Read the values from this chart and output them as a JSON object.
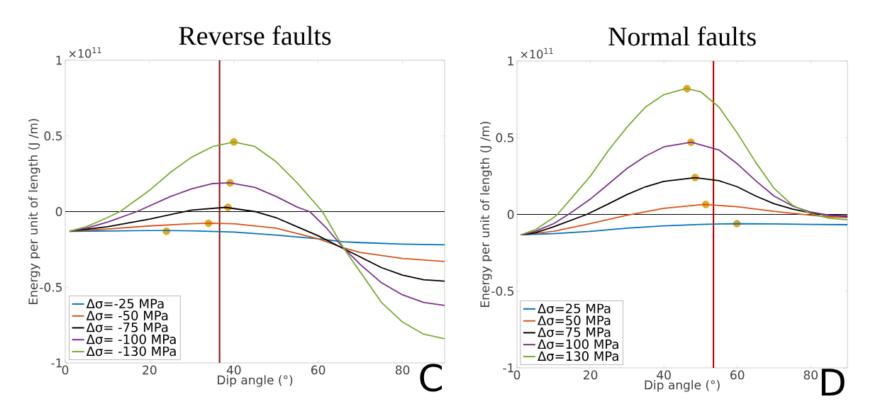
{
  "chart_data": [
    {
      "type": "line",
      "title": "Reverse faults",
      "xlabel": "Dip angle (°)",
      "ylabel": "Energy per unit of length (J /m)",
      "xlim": [
        0,
        90
      ],
      "ylim": [
        -1,
        1
      ],
      "xticks": [
        0,
        20,
        40,
        60,
        80
      ],
      "yticks": [
        -1,
        -0.5,
        0,
        0.5,
        1
      ],
      "legend": "bottom left",
      "annotations": [
        "×10$^{11}$",
        "C"
      ],
      "ref_lines": [
        {
          "axis": "y",
          "value": 0,
          "color": "#000000"
        },
        {
          "axis": "x",
          "value": 36.6,
          "color": "#8b1414"
        }
      ],
      "series": [
        {
          "name": "Δσ=-25 MPa",
          "color": "#0072bd",
          "x": [
            1,
            10,
            20,
            24,
            30,
            40,
            50,
            60,
            66,
            70,
            80,
            90
          ],
          "values": [
            -0.13,
            -0.128,
            -0.125,
            -0.125,
            -0.127,
            -0.135,
            -0.155,
            -0.18,
            -0.2,
            -0.205,
            -0.215,
            -0.22
          ]
        },
        {
          "name": "Δσ= -50 MPa",
          "color": "#d95319",
          "x": [
            1,
            10,
            20,
            30,
            34,
            40,
            50,
            60,
            66,
            70,
            80,
            90
          ],
          "values": [
            -0.13,
            -0.115,
            -0.095,
            -0.08,
            -0.077,
            -0.08,
            -0.11,
            -0.18,
            -0.24,
            -0.27,
            -0.31,
            -0.33
          ]
        },
        {
          "name": "Δσ= -75 MPa",
          "color": "#000000",
          "x": [
            1,
            10,
            20,
            30,
            38,
            45,
            50,
            55,
            60,
            66,
            70,
            75,
            80,
            85,
            90
          ],
          "values": [
            -0.13,
            -0.1,
            -0.05,
            0.01,
            0.028,
            0.0,
            -0.04,
            -0.1,
            -0.16,
            -0.245,
            -0.3,
            -0.37,
            -0.42,
            -0.45,
            -0.46
          ]
        },
        {
          "name": "Δσ= -100 MPa",
          "color": "#7e2f8e",
          "x": [
            1,
            5,
            10,
            17,
            25,
            30,
            35,
            39,
            45,
            50,
            55,
            58,
            62,
            66,
            70,
            75,
            80,
            85,
            90
          ],
          "values": [
            -0.13,
            -0.11,
            -0.07,
            0.0,
            0.1,
            0.15,
            0.185,
            0.19,
            0.16,
            0.1,
            0.03,
            0.0,
            -0.11,
            -0.24,
            -0.35,
            -0.47,
            -0.55,
            -0.6,
            -0.62
          ]
        },
        {
          "name": "Δσ= -130 MPa",
          "color": "#77ac30",
          "x": [
            1,
            5,
            10,
            13,
            20,
            25,
            30,
            35,
            40,
            45,
            50,
            55,
            61,
            66,
            70,
            75,
            80,
            85,
            90
          ],
          "values": [
            -0.13,
            -0.1,
            -0.04,
            0.0,
            0.14,
            0.26,
            0.36,
            0.43,
            0.46,
            0.43,
            0.33,
            0.19,
            0.0,
            -0.24,
            -0.4,
            -0.6,
            -0.73,
            -0.81,
            -0.84
          ]
        },
        {
          "type": "scatter",
          "color": "#e6a817",
          "x": [
            24,
            34,
            38.6,
            39.1,
            40
          ],
          "values": [
            -0.13,
            -0.077,
            0.028,
            0.19,
            0.46
          ]
        }
      ]
    },
    {
      "type": "line",
      "title": "Normal faults",
      "xlabel": "Dip angle (°)",
      "ylabel": "Energy per unit of length (J /m)",
      "xlim": [
        0,
        90
      ],
      "ylim": [
        -1,
        1
      ],
      "xticks": [
        0,
        20,
        40,
        60,
        80
      ],
      "yticks": [
        -1,
        -0.5,
        0,
        0.5,
        1
      ],
      "legend": "bottom left",
      "annotations": [
        "×10$^{11}$",
        "D"
      ],
      "ref_lines": [
        {
          "axis": "y",
          "value": 0,
          "color": "#000000"
        },
        {
          "axis": "x",
          "value": 53.5,
          "color": "#c00000"
        }
      ],
      "series": [
        {
          "name": "Δσ=25 MPa",
          "color": "#0072bd",
          "x": [
            1,
            10,
            20,
            30,
            40,
            50,
            60,
            70,
            80,
            90
          ],
          "values": [
            -0.133,
            -0.125,
            -0.11,
            -0.09,
            -0.075,
            -0.065,
            -0.06,
            -0.062,
            -0.065,
            -0.067
          ]
        },
        {
          "name": "Δσ=50 MPa",
          "color": "#d95319",
          "x": [
            1,
            10,
            20,
            30,
            40,
            51,
            60,
            70,
            80,
            85,
            90
          ],
          "values": [
            -0.133,
            -0.11,
            -0.06,
            -0.005,
            0.04,
            0.065,
            0.05,
            0.02,
            -0.005,
            -0.015,
            -0.02
          ]
        },
        {
          "name": "Δσ=75 MPa",
          "color": "#000000",
          "x": [
            1,
            5,
            10,
            19,
            25,
            30,
            35,
            40,
            48.5,
            55,
            60,
            65,
            70,
            75,
            80,
            85,
            90
          ],
          "values": [
            -0.133,
            -0.12,
            -0.08,
            0.0,
            0.07,
            0.13,
            0.18,
            0.215,
            0.24,
            0.22,
            0.18,
            0.12,
            0.07,
            0.035,
            0.01,
            -0.005,
            -0.01
          ]
        },
        {
          "name": "Δσ=100 MPa",
          "color": "#7e2f8e",
          "x": [
            1,
            5,
            10,
            14,
            20,
            25,
            30,
            35,
            40,
            47.5,
            55,
            60,
            65,
            70,
            75,
            80,
            85,
            90
          ],
          "values": [
            -0.133,
            -0.11,
            -0.06,
            0.0,
            0.1,
            0.2,
            0.3,
            0.38,
            0.44,
            0.47,
            0.42,
            0.33,
            0.22,
            0.12,
            0.055,
            0.015,
            -0.005,
            -0.015
          ]
        },
        {
          "name": "Δσ=130 MPa",
          "color": "#77ac30",
          "x": [
            1,
            5,
            10,
            11,
            15,
            20,
            25,
            30,
            35,
            40,
            46,
            50,
            55,
            60,
            65,
            70,
            75,
            80,
            85,
            90
          ],
          "values": [
            -0.133,
            -0.1,
            -0.02,
            0.0,
            0.11,
            0.25,
            0.42,
            0.57,
            0.7,
            0.78,
            0.82,
            0.8,
            0.7,
            0.53,
            0.34,
            0.17,
            0.06,
            0.005,
            -0.025,
            -0.035
          ]
        },
        {
          "type": "scatter",
          "color": "#e6a817",
          "x": [
            59.9,
            51.4,
            48.5,
            47.4,
            46.3
          ],
          "values": [
            -0.06,
            0.065,
            0.24,
            0.47,
            0.82
          ]
        }
      ]
    }
  ]
}
